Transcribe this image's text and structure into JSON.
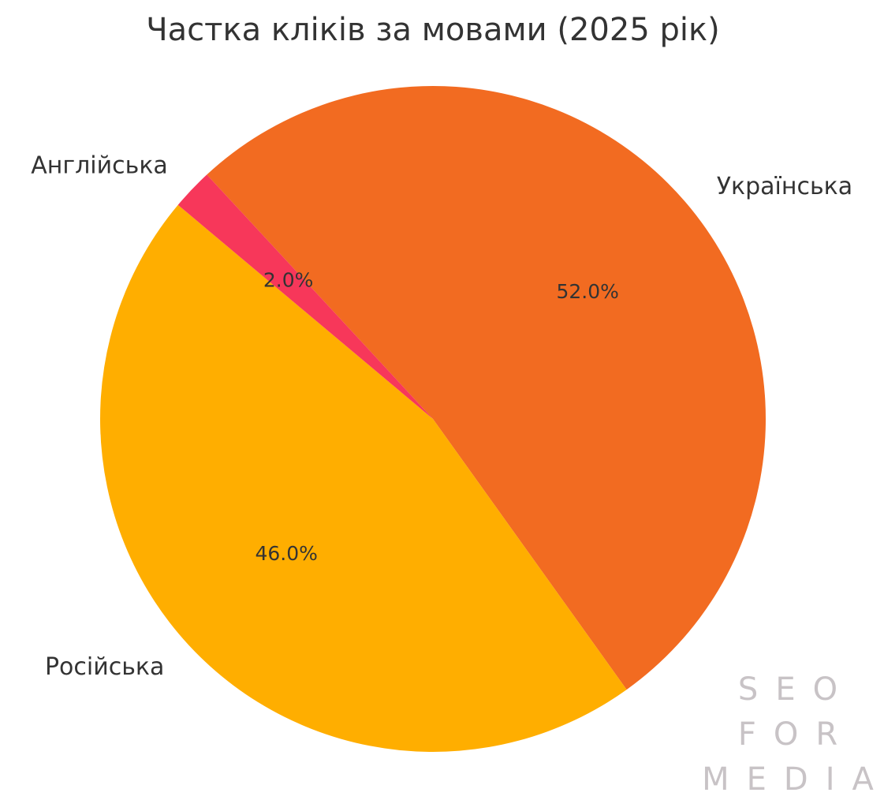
{
  "chart_data": {
    "type": "pie",
    "title": "Частка кліків за мовами (2025 рік)",
    "categories": [
      "Українська",
      "Російська",
      "Англійська"
    ],
    "values": [
      52,
      46,
      2
    ],
    "value_labels": [
      "52.0%",
      "46.0%",
      "2.0%"
    ],
    "colors": [
      "#f26b21",
      "#ffae00",
      "#f7375a"
    ],
    "startangle": 132.8,
    "counterclock": false
  },
  "watermark": [
    "SEO",
    "FOR",
    "MEDIA"
  ]
}
